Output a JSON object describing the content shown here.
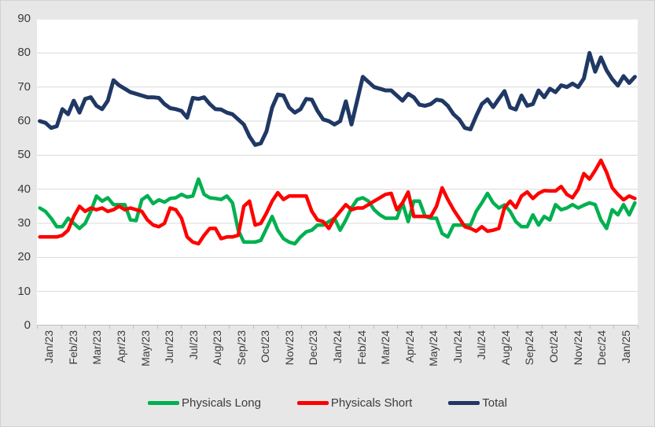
{
  "chart_data": {
    "type": "line",
    "title": "",
    "grid": true,
    "legend_position": "bottom",
    "x_axis": {
      "labels": [
        "Jan/23",
        "Feb/23",
        "Mar/23",
        "Apr/23",
        "May/23",
        "Jun/23",
        "Jul/23",
        "Aug/23",
        "Sep/23",
        "Oct/23",
        "Nov/23",
        "Dec/23",
        "Jan/24",
        "Feb/24",
        "Mar/24",
        "Apr/24",
        "May/24",
        "Jun/24",
        "Jul/24",
        "Aug/24",
        "Sep/24",
        "Oct/24",
        "Nov/24",
        "Dec/24",
        "Jan/25"
      ]
    },
    "y_axis": {
      "min": 0,
      "max": 90,
      "step": 10,
      "tick_labels": [
        "0",
        "10",
        "20",
        "30",
        "40",
        "50",
        "60",
        "70",
        "80",
        "90"
      ]
    },
    "frequency": "weekly",
    "series": [
      {
        "name": "Physicals Long",
        "color": "#00B050",
        "values": [
          34.5,
          33.5,
          31.5,
          29,
          29,
          31.5,
          30,
          28.5,
          30,
          33.5,
          38,
          36.5,
          37.5,
          35.5,
          35.5,
          35.5,
          31,
          30.8,
          36.9,
          38.1,
          35.8,
          36.9,
          36.2,
          37.3,
          37.5,
          38.5,
          37.7,
          38,
          43,
          38.5,
          37.5,
          37.3,
          37,
          38,
          36,
          28,
          24.5,
          24.5,
          24.5,
          25,
          28.5,
          32,
          28,
          25.5,
          24.5,
          24,
          26,
          27.5,
          28,
          29.5,
          29.5,
          30.5,
          31.5,
          28,
          31,
          34.5,
          37,
          37.5,
          36.5,
          34,
          32.5,
          31.5,
          31.5,
          31.5,
          36,
          30.5,
          36.5,
          36.5,
          32,
          31.5,
          31.5,
          27,
          26,
          29.5,
          29.5,
          29.5,
          29.5,
          33.5,
          36,
          38.8,
          36,
          34.5,
          35.4,
          33.5,
          30.5,
          29,
          29,
          32.5,
          29.5,
          32,
          31,
          35.5,
          34,
          34.5,
          35.5,
          34.5,
          35.3,
          36,
          35.5,
          31,
          28.5,
          34,
          32.5,
          35.5,
          32.5,
          36
        ]
      },
      {
        "name": "Physicals Short",
        "color": "#FF0000",
        "values": [
          26,
          26,
          26,
          26,
          26.5,
          28,
          32,
          35,
          33.5,
          34.5,
          34,
          34.5,
          33.5,
          34,
          35,
          34,
          34.5,
          34,
          33.5,
          31,
          29.5,
          29,
          30,
          34.5,
          34,
          31.5,
          26,
          24.5,
          24,
          26.5,
          28.5,
          28.5,
          25.5,
          26,
          26,
          26.5,
          35,
          36.5,
          29.5,
          30,
          33,
          36.5,
          39,
          37,
          38,
          38,
          38,
          38,
          33.5,
          31,
          30.5,
          28.5,
          31.5,
          33.5,
          35.5,
          34,
          34.5,
          34.5,
          35.5,
          36.5,
          37.5,
          38.5,
          38.8,
          34,
          36,
          39.2,
          32,
          32,
          32,
          32,
          35,
          40.4,
          37,
          34,
          31.5,
          29,
          28.5,
          27.7,
          29,
          27.7,
          28,
          28.5,
          34.6,
          36.5,
          34.6,
          38,
          39.2,
          37.3,
          38.8,
          39.6,
          39.5,
          39.5,
          40.8,
          38.5,
          37.5,
          40,
          44.6,
          43,
          45.5,
          48.5,
          45,
          40.4,
          38.5,
          36.9,
          38,
          37.3
        ]
      },
      {
        "name": "Total",
        "color": "#1F3864",
        "values": [
          60,
          59.5,
          58,
          58.5,
          63.5,
          62,
          66,
          62.5,
          66.5,
          67,
          64.5,
          63.5,
          66,
          72,
          70.5,
          69.5,
          68.5,
          68,
          67.5,
          67,
          67,
          66.8,
          65,
          63.8,
          63.5,
          63,
          61,
          66.8,
          66.5,
          67,
          65,
          63.5,
          63.4,
          62.5,
          62,
          60.5,
          59,
          55.5,
          53,
          53.5,
          57,
          64,
          67.8,
          67.5,
          64,
          62.5,
          63.5,
          66.5,
          66.3,
          63,
          60.5,
          60,
          59,
          60,
          65.8,
          59,
          66,
          73,
          71.5,
          70,
          69.5,
          69,
          69,
          67.5,
          66,
          68,
          67,
          64.8,
          64.5,
          65,
          66.3,
          66,
          64.5,
          62,
          60.5,
          58,
          57.6,
          61.5,
          65,
          66.4,
          64.1,
          66.5,
          68.8,
          64,
          63.4,
          67.5,
          64.5,
          65,
          69,
          67,
          69.5,
          68.5,
          70.5,
          70,
          71,
          70,
          72.5,
          80,
          74.5,
          78.7,
          74.9,
          72.3,
          70.4,
          73.2,
          71.2,
          73
        ]
      }
    ]
  },
  "colors": {
    "background": "#e7e7e7",
    "plot_background": "#ffffff",
    "gridline": "#d9d9d9",
    "axis_line": "#bfbfbf",
    "label_text": "#3b3b3b"
  }
}
